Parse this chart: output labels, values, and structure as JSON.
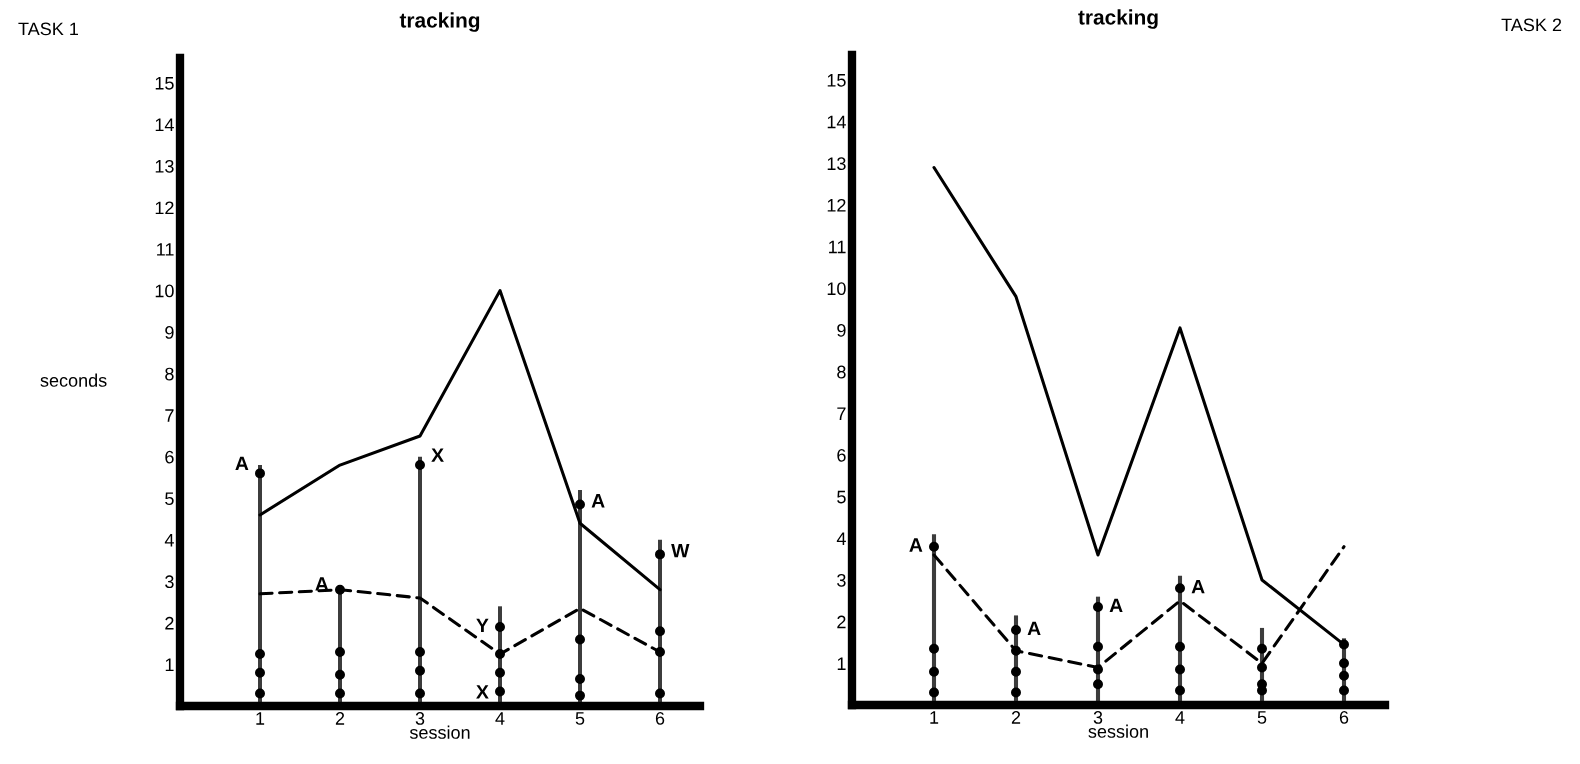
{
  "chart_data": [
    {
      "type": "line",
      "title": "tracking",
      "xlabel": "session",
      "ylabel": "seconds",
      "categories": [
        "1",
        "2",
        "3",
        "4",
        "5",
        "6"
      ],
      "ylim": [
        0,
        15.6
      ],
      "yticks": [
        1,
        2,
        3,
        4,
        5,
        6,
        7,
        8,
        9,
        10,
        11,
        12,
        13,
        14,
        15
      ],
      "grid": false,
      "legend": false,
      "series": [
        {
          "type": "bar",
          "color": "#3c3c3c",
          "values": [
            5.8,
            2.8,
            6.0,
            2.4,
            5.2,
            4.0
          ]
        },
        {
          "color": "#000000",
          "line_style": "solid",
          "marker": "none",
          "values": [
            4.6,
            5.8,
            6.5,
            10.0,
            4.4,
            2.8
          ]
        },
        {
          "color": "#000000",
          "line_style": "dashed",
          "marker": "none",
          "values": [
            2.7,
            2.8,
            2.6,
            1.25,
            2.35,
            1.3
          ]
        },
        {
          "type": "scatter",
          "color": "#000000",
          "marker": "circle",
          "x": [
            "1",
            "1",
            "1",
            "1",
            "2",
            "2",
            "2",
            "2",
            "3",
            "3",
            "3",
            "3",
            "4",
            "4",
            "4",
            "4",
            "5",
            "5",
            "5",
            "5",
            "6",
            "6",
            "6",
            "6"
          ],
          "values": [
            5.6,
            1.25,
            0.8,
            0.3,
            2.8,
            1.3,
            0.75,
            0.3,
            5.8,
            1.3,
            0.85,
            0.3,
            1.9,
            1.25,
            0.8,
            0.35,
            4.85,
            1.6,
            0.65,
            0.25,
            3.65,
            1.8,
            1.3,
            0.3
          ]
        }
      ],
      "annotations": [
        "TASK 1",
        {
          "text": "A",
          "x": "1",
          "y": 5.8
        },
        {
          "text": "A",
          "x": "2",
          "y": 2.9
        },
        {
          "text": "X",
          "x": "3",
          "y": 6.0
        },
        {
          "text": "Y",
          "x": "4",
          "y": 1.9
        },
        {
          "text": "X",
          "x": "4",
          "y": 0.3
        },
        {
          "text": "A",
          "x": "5",
          "y": 4.9
        },
        {
          "text": "W",
          "x": "6",
          "y": 3.7
        }
      ]
    },
    {
      "type": "line",
      "title": "tracking",
      "xlabel": "session",
      "categories": [
        "1",
        "2",
        "3",
        "4",
        "5",
        "6"
      ],
      "ylim": [
        0,
        15.6
      ],
      "yticks": [
        1,
        2,
        3,
        4,
        5,
        6,
        7,
        8,
        9,
        10,
        11,
        12,
        13,
        14,
        15
      ],
      "grid": false,
      "legend": false,
      "series": [
        {
          "type": "bar",
          "color": "#3c3c3c",
          "values": [
            4.1,
            2.15,
            2.6,
            3.1,
            1.85,
            1.6
          ]
        },
        {
          "color": "#000000",
          "line_style": "solid",
          "marker": "none",
          "values": [
            12.9,
            9.8,
            3.6,
            9.05,
            3.0,
            1.45
          ]
        },
        {
          "color": "#000000",
          "line_style": "dashed",
          "marker": "none",
          "values": [
            3.6,
            1.3,
            0.9,
            2.5,
            1.0,
            3.8
          ]
        },
        {
          "type": "scatter",
          "color": "#000000",
          "marker": "circle",
          "x": [
            "1",
            "1",
            "1",
            "1",
            "2",
            "2",
            "2",
            "2",
            "3",
            "3",
            "3",
            "3",
            "4",
            "4",
            "4",
            "4",
            "5",
            "5",
            "5",
            "5",
            "6",
            "6",
            "6",
            "6"
          ],
          "values": [
            3.8,
            1.35,
            0.8,
            0.3,
            1.8,
            1.3,
            0.8,
            0.3,
            2.35,
            1.4,
            0.85,
            0.5,
            2.8,
            1.4,
            0.85,
            0.35,
            1.35,
            0.9,
            0.5,
            0.35,
            1.45,
            1.0,
            0.7,
            0.35
          ]
        }
      ],
      "annotations": [
        "TASK 2",
        {
          "text": "A",
          "x": "1",
          "y": 3.8
        },
        {
          "text": "A",
          "x": "2",
          "y": 1.8
        },
        {
          "text": "A",
          "x": "3",
          "y": 2.35
        },
        {
          "text": "A",
          "x": "4",
          "y": 2.8
        }
      ]
    }
  ]
}
